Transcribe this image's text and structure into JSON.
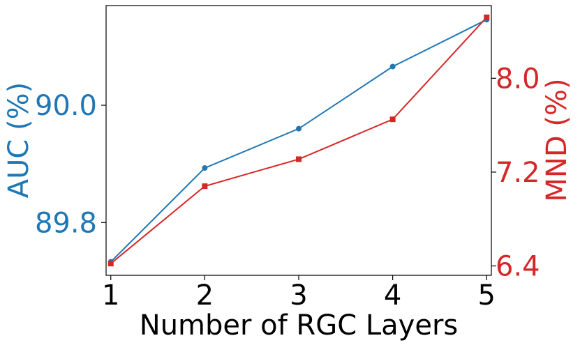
{
  "chart_data": {
    "type": "line",
    "xlabel": "Number of RGC Layers",
    "x": [
      1,
      2,
      3,
      4,
      5
    ],
    "xticks": [
      "1",
      "2",
      "3",
      "4",
      "5"
    ],
    "xlim": [
      0.95,
      5.05
    ],
    "grid": false,
    "series": [
      {
        "name": "AUC (%)",
        "axis": "left",
        "marker": "circle",
        "color": "#1f77b4",
        "values": [
          89.733,
          89.893,
          89.96,
          90.066,
          90.146
        ]
      },
      {
        "name": "MND (%)",
        "axis": "right",
        "marker": "square",
        "color": "#d62728",
        "values": [
          6.42,
          7.08,
          7.31,
          7.65,
          8.52
        ]
      }
    ],
    "y_left": {
      "label": "AUC (%)",
      "color": "#1f77b4",
      "ticks": [
        89.8,
        90.0
      ],
      "tick_labels": [
        "89.8",
        "90.0"
      ],
      "ylim": [
        89.71,
        90.17
      ]
    },
    "y_right": {
      "label": "MND (%)",
      "color": "#d62728",
      "ticks": [
        6.4,
        7.2,
        8.0
      ],
      "tick_labels": [
        "6.4",
        "7.2",
        "8.0"
      ],
      "ylim": [
        6.32,
        8.62
      ]
    }
  }
}
